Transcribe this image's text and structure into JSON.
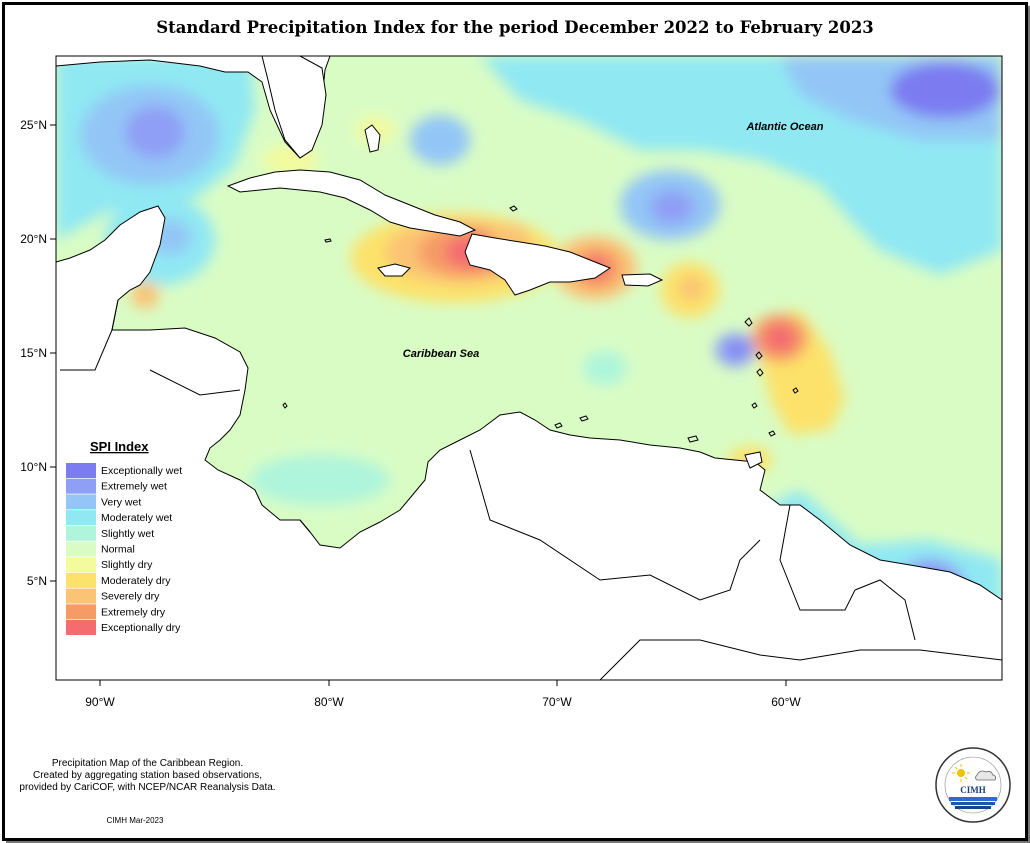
{
  "title": "Standard Precipitation Index for the period December 2022 to February 2023",
  "map": {
    "ocean_labels": [
      "Atlantic Ocean",
      "Caribbean Sea"
    ],
    "lat_ticks": [
      "25°N",
      "20°N",
      "15°N",
      "10°N",
      "5°N"
    ],
    "lon_ticks": [
      "90°W",
      "80°W",
      "70°W",
      "60°W"
    ]
  },
  "legend": {
    "title": "SPI Index",
    "items": [
      {
        "label": "Exceptionally wet",
        "color": "#7b7cf0"
      },
      {
        "label": "Extremely wet",
        "color": "#8f9ff5"
      },
      {
        "label": "Very wet",
        "color": "#93c6f6"
      },
      {
        "label": "Moderately wet",
        "color": "#90e8f3"
      },
      {
        "label": "Slightly wet",
        "color": "#aef5dc"
      },
      {
        "label": "Normal",
        "color": "#d9fcc5"
      },
      {
        "label": "Slightly dry",
        "color": "#f4fb9e"
      },
      {
        "label": "Moderately dry",
        "color": "#fce26a"
      },
      {
        "label": "Severely dry",
        "color": "#fbc374"
      },
      {
        "label": "Extremely dry",
        "color": "#f69a66"
      },
      {
        "label": "Exceptionally dry",
        "color": "#f46b70"
      }
    ]
  },
  "footer": {
    "note_line1": "Precipitation Map of the Caribbean Region.",
    "note_line2": "Created by aggregating station based observations,",
    "note_line3": "provided by CariCOF, with NCEP/NCAR Reanalysis Data.",
    "credit": "CIMH Mar-2023",
    "logo_text": "CIMH"
  }
}
